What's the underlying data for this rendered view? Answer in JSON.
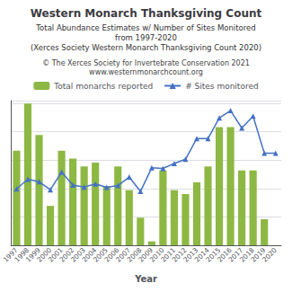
{
  "chart_data": {
    "type": "bar",
    "title": "Western Monarch Thanksgiving Count",
    "subtitle": [
      "Total Abundance Estimates w/ Number of Sites Monitored",
      "from 1997-2020",
      "(Xerces Society Western Monarch Thanksgiving Count 2020)"
    ],
    "annotations": [
      "© The Xerces Society for Invertebrate Conservation 2021",
      "www.westernmonarchcount.org"
    ],
    "xlabel": "Year",
    "categories": [
      "1997",
      "1998",
      "1999",
      "2000",
      "2001",
      "2002",
      "2003",
      "2004",
      "2005",
      "2006",
      "2007",
      "2008",
      "2009",
      "2010",
      "2011",
      "2012",
      "2013",
      "2014",
      "2015",
      "2016",
      "2017",
      "2018",
      "2019",
      "2020"
    ],
    "series": [
      {
        "name": "Total monarchs reported",
        "type": "bar",
        "color": "#8db843",
        "values": [
          1200000,
          1800000,
          1400000,
          500000,
          1200000,
          1100000,
          1000000,
          1050000,
          750000,
          1000000,
          700000,
          350000,
          50000,
          950000,
          700000,
          650000,
          800000,
          1000000,
          1500000,
          1500000,
          950000,
          950000,
          330000,
          2000
        ]
      },
      {
        "name": "# Sites monitored",
        "type": "line",
        "color": "#4472c4",
        "marker": "triangle",
        "values": [
          715078.125,
          838125,
          806484.375,
          704531.25,
          929531.25,
          764296.875,
          739687.5,
          778359.375,
          736171.875,
          757265.625,
          866250,
          683437.5,
          982265.625,
          975234.375,
          1038515.625,
          1091250,
          1354921.875,
          1354921.875,
          1615078.125,
          1710000,
          1488515.625,
          1639687.5,
          1168593.75,
          1168593.75
        ]
      }
    ],
    "ylim": [
      0,
      1836000
    ],
    "yticks": [
      360000,
      720000,
      1080000,
      1440000,
      1800000
    ],
    "grid": true,
    "legend": "top",
    "tick_labels": "x"
  }
}
